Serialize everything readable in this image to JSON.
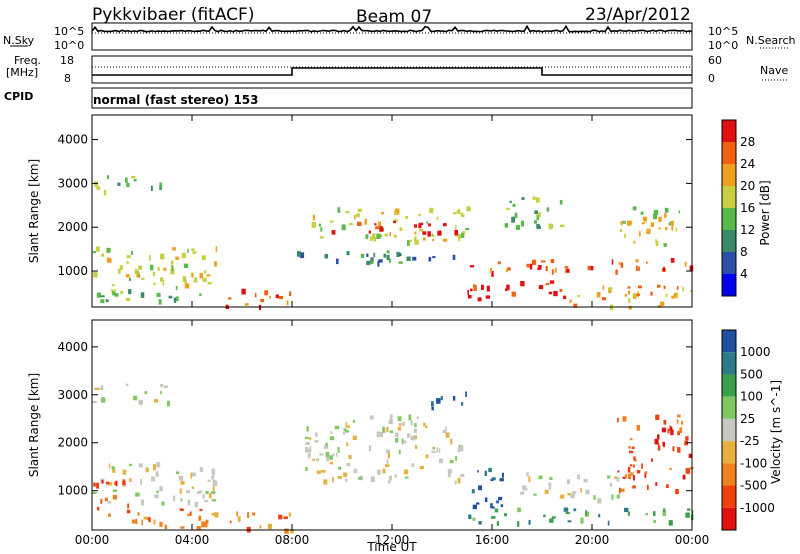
{
  "header": {
    "radar": "Pykkvibaer (fitACF)",
    "beam": "Beam 07",
    "date": "23/Apr/2012",
    "cpid_label": "CPID",
    "cpid_value": "normal (fast stereo) 153"
  },
  "aux_panels": {
    "nsky_label": "N.Sky",
    "nsearch_label": "N.Search",
    "freq_label_1": "Freq.",
    "freq_label_2": "[MHz]",
    "nave_label": "Nave",
    "nsky_ticks": [
      "10^5",
      "10^0"
    ],
    "nsearch_ticks": [
      "10^5",
      "10^0"
    ],
    "freq_ticks": [
      "18",
      "8"
    ],
    "nave_ticks": [
      "60",
      "0"
    ]
  },
  "chart_data": [
    {
      "type": "heatmap",
      "name": "power",
      "ylabel": "Slant Range [km]",
      "ylim": [
        180,
        4560
      ],
      "y_ticks": [
        "1000",
        "2000",
        "3000",
        "4000"
      ],
      "x_ticks": [
        "00:00",
        "04:00",
        "08:00",
        "12:00",
        "16:00",
        "20:00",
        "00:00"
      ],
      "colorbar": {
        "label": "Power [dB]",
        "ticks": [
          "4",
          "8",
          "12",
          "16",
          "20",
          "24",
          "28"
        ],
        "colors": [
          "#0000ee",
          "#2a4fa6",
          "#3a8a6a",
          "#5bb84a",
          "#c8d040",
          "#f0a020",
          "#f06010",
          "#e01010"
        ]
      },
      "regions": [
        {
          "t": [
            0.0,
            2.8
          ],
          "r": [
            2850,
            3200
          ],
          "level": 3
        },
        {
          "t": [
            0.0,
            5.0
          ],
          "r": [
            700,
            1600
          ],
          "level": 4
        },
        {
          "t": [
            0.0,
            4.5
          ],
          "r": [
            350,
            700
          ],
          "level": 3
        },
        {
          "t": [
            5.3,
            8.0
          ],
          "r": [
            200,
            600
          ],
          "level": 6
        },
        {
          "t": [
            8.0,
            14.8
          ],
          "r": [
            1200,
            1500
          ],
          "level": 2
        },
        {
          "t": [
            8.6,
            15.0
          ],
          "r": [
            1700,
            2500
          ],
          "level": 4
        },
        {
          "t": [
            9.5,
            14.5
          ],
          "r": [
            1900,
            2150
          ],
          "level": 7
        },
        {
          "t": [
            15.0,
            24.0
          ],
          "r": [
            1000,
            1300
          ],
          "level": 6
        },
        {
          "t": [
            15.0,
            19.0
          ],
          "r": [
            400,
            800
          ],
          "level": 7
        },
        {
          "t": [
            19.0,
            24.0
          ],
          "r": [
            200,
            700
          ],
          "level": 5
        },
        {
          "t": [
            16.5,
            19.0
          ],
          "r": [
            2000,
            2700
          ],
          "level": 3
        },
        {
          "t": [
            21.0,
            23.5
          ],
          "r": [
            1600,
            2600
          ],
          "level": 4
        }
      ]
    },
    {
      "type": "heatmap",
      "name": "velocity",
      "ylabel": "Slant Range [km]",
      "xlabel": "Time UT",
      "ylim": [
        180,
        4560
      ],
      "y_ticks": [
        "1000",
        "2000",
        "3000",
        "4000"
      ],
      "x_ticks": [
        "00:00",
        "04:00",
        "08:00",
        "12:00",
        "16:00",
        "20:00",
        "00:00"
      ],
      "colorbar": {
        "label": "Velocity [m s^-1]",
        "ticks": [
          "1000",
          "500",
          "100",
          "25",
          "-25",
          "-100",
          "-500",
          "-1000"
        ],
        "colors": [
          "#2050a0",
          "#2e7a8a",
          "#38a048",
          "#80c860",
          "#c8c8c0",
          "#e8b040",
          "#f08020",
          "#f04010",
          "#e01010"
        ]
      },
      "regions": [
        {
          "t": [
            0.0,
            3.0
          ],
          "r": [
            2850,
            3250
          ],
          "level": 4
        },
        {
          "t": [
            0.0,
            5.0
          ],
          "r": [
            700,
            1600
          ],
          "level": 4
        },
        {
          "t": [
            0.0,
            1.5
          ],
          "r": [
            600,
            1300
          ],
          "level": 7
        },
        {
          "t": [
            0.0,
            5.0
          ],
          "r": [
            250,
            650
          ],
          "level": 6
        },
        {
          "t": [
            5.5,
            8.0
          ],
          "r": [
            200,
            600
          ],
          "level": 6
        },
        {
          "t": [
            8.5,
            15.0
          ],
          "r": [
            1200,
            2600
          ],
          "level": 4
        },
        {
          "t": [
            15.0,
            16.5
          ],
          "r": [
            600,
            1500
          ],
          "level": 0
        },
        {
          "t": [
            15.0,
            24.0
          ],
          "r": [
            350,
            650
          ],
          "level": 2
        },
        {
          "t": [
            17.0,
            21.0
          ],
          "r": [
            800,
            1400
          ],
          "level": 4
        },
        {
          "t": [
            13.5,
            15.0
          ],
          "r": [
            2700,
            3100
          ],
          "level": 1
        },
        {
          "t": [
            21.0,
            24.0
          ],
          "r": [
            1000,
            2600
          ],
          "level": 7
        }
      ]
    }
  ]
}
